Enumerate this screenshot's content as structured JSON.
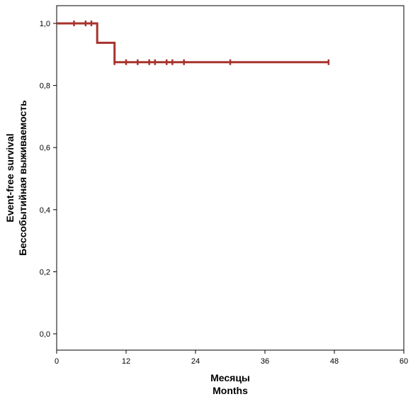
{
  "chart_data": {
    "type": "line",
    "title": "",
    "xlabel": "Месяцы",
    "xlabel_en": "Months",
    "ylabel": "Бессобытийная выживаемость",
    "ylabel_en": "Event-free survival",
    "xlim": [
      0,
      60
    ],
    "ylim": [
      0,
      1.05
    ],
    "x_ticks": [
      0,
      12,
      24,
      36,
      48,
      60
    ],
    "y_ticks": [
      0.0,
      0.2,
      0.4,
      0.6,
      0.8,
      1.0
    ],
    "y_tick_labels": [
      "0,0",
      "0,2",
      "0,4",
      "0,6",
      "0,8",
      "1,0"
    ],
    "grid": false,
    "line_color": "#a8322d",
    "series": [
      {
        "steps": [
          {
            "x": 0,
            "y": 1.0
          },
          {
            "x": 7,
            "y": 1.0
          },
          {
            "x": 7,
            "y": 0.9375
          },
          {
            "x": 10,
            "y": 0.9375
          },
          {
            "x": 10,
            "y": 0.875
          },
          {
            "x": 47,
            "y": 0.875
          }
        ],
        "censored": [
          {
            "x": 3,
            "y": 1.0
          },
          {
            "x": 5,
            "y": 1.0
          },
          {
            "x": 6,
            "y": 1.0
          },
          {
            "x": 10,
            "y": 0.875
          },
          {
            "x": 12,
            "y": 0.875
          },
          {
            "x": 14,
            "y": 0.875
          },
          {
            "x": 16,
            "y": 0.875
          },
          {
            "x": 17,
            "y": 0.875
          },
          {
            "x": 19,
            "y": 0.875
          },
          {
            "x": 20,
            "y": 0.875
          },
          {
            "x": 22,
            "y": 0.875
          },
          {
            "x": 30,
            "y": 0.875
          },
          {
            "x": 47,
            "y": 0.875
          }
        ]
      }
    ]
  }
}
